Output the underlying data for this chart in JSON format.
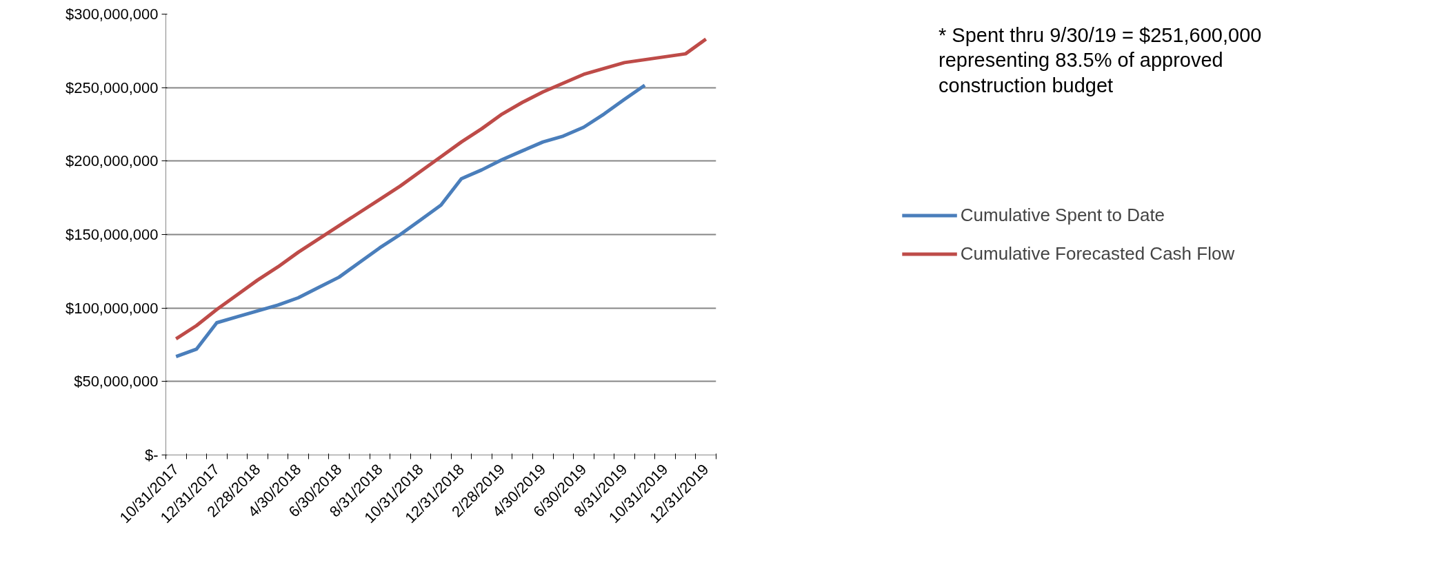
{
  "chart_data": {
    "type": "line",
    "categories": [
      "10/31/2017",
      null,
      "12/31/2017",
      null,
      "2/28/2018",
      null,
      "4/30/2018",
      null,
      "6/30/2018",
      null,
      "8/31/2018",
      null,
      "10/31/2018",
      null,
      "12/31/2018",
      null,
      "2/28/2019",
      null,
      "4/30/2019",
      null,
      "6/30/2019",
      null,
      "8/31/2019",
      null,
      "10/31/2019",
      null,
      "12/31/2019"
    ],
    "series": [
      {
        "name": "Cumulative Spent to Date",
        "color": "#4a7ebb",
        "values": [
          67000000,
          72000000,
          90000000,
          94000000,
          98000000,
          102000000,
          107000000,
          114000000,
          121000000,
          131000000,
          141000000,
          150000000,
          160000000,
          170000000,
          188000000,
          194000000,
          201000000,
          207000000,
          213000000,
          217000000,
          223000000,
          232000000,
          242000000,
          251600000,
          null,
          null,
          null
        ]
      },
      {
        "name": "Cumulative Forecasted Cash Flow",
        "color": "#be4b48",
        "values": [
          79000000,
          88000000,
          99000000,
          109000000,
          119000000,
          128000000,
          138000000,
          147000000,
          156000000,
          165000000,
          174000000,
          183000000,
          193000000,
          203000000,
          213000000,
          222000000,
          232000000,
          240000000,
          247000000,
          253000000,
          259000000,
          263000000,
          267000000,
          269000000,
          271000000,
          273000000,
          283000000
        ]
      }
    ],
    "ylim": [
      0,
      300000000
    ],
    "yticks": [
      {
        "value": 0,
        "label": "$-"
      },
      {
        "value": 50000000,
        "label": "$50,000,000"
      },
      {
        "value": 100000000,
        "label": "$100,000,000"
      },
      {
        "value": 150000000,
        "label": "$150,000,000"
      },
      {
        "value": 200000000,
        "label": "$200,000,000"
      },
      {
        "value": 250000000,
        "label": "$250,000,000"
      },
      {
        "value": 300000000,
        "label": "$300,000,000"
      }
    ],
    "grid": "y",
    "legend": "right",
    "line_style": "solid",
    "marker": "none",
    "annotations": [
      "* Spent thru 9/30/19 = $251,600,000\nrepresenting 83.5% of approved\nconstruction budget"
    ]
  }
}
